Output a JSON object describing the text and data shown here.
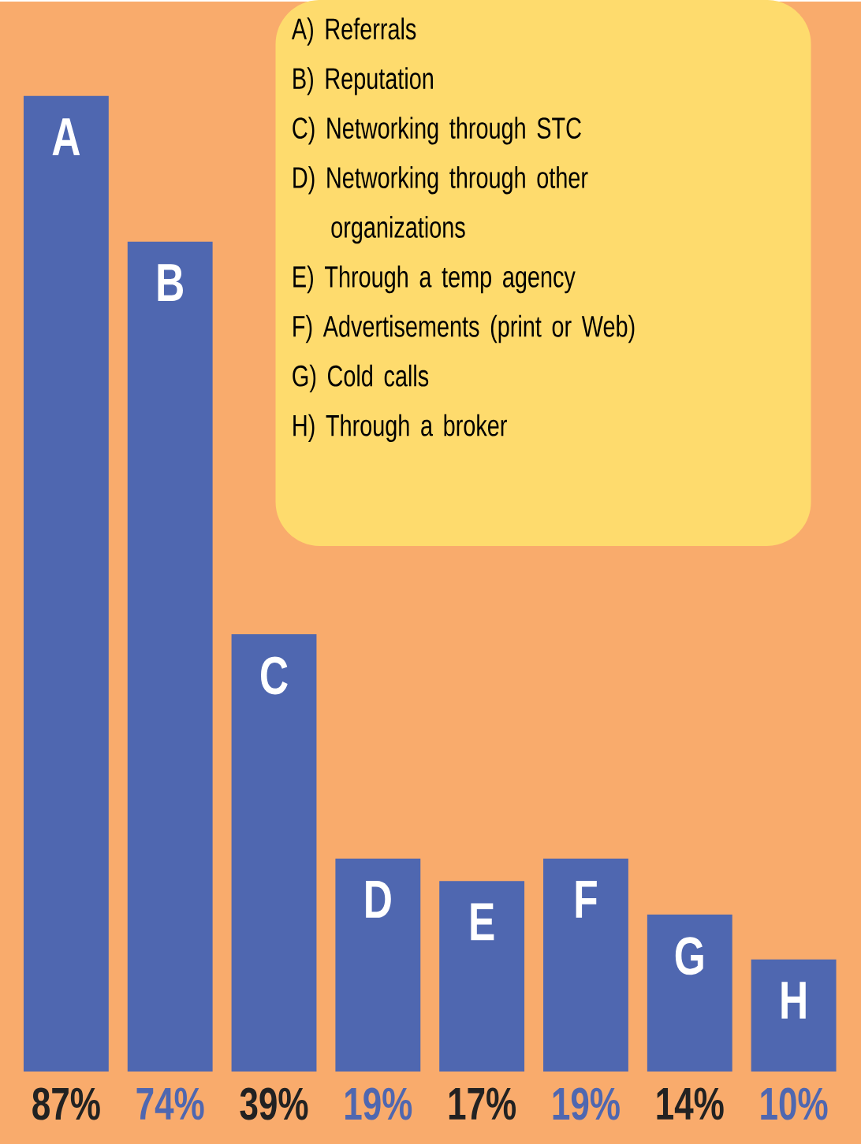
{
  "chart_data": {
    "type": "bar",
    "categories": [
      "A",
      "B",
      "C",
      "D",
      "E",
      "F",
      "G",
      "H"
    ],
    "values": [
      87,
      74,
      39,
      19,
      17,
      19,
      14,
      10
    ],
    "value_labels": [
      "87%",
      "74%",
      "39%",
      "19%",
      "17%",
      "19%",
      "14%",
      "10%"
    ],
    "color": "#4f67b0",
    "annotations": [
      "A) Referrals",
      "B) Reputation",
      "C) Networking through STC",
      "D) Networking through other organizations",
      "E) Through a temp agency",
      "F) Advertisements (print or Web)",
      "G) Cold calls",
      "H) Through a broker"
    ]
  }
}
